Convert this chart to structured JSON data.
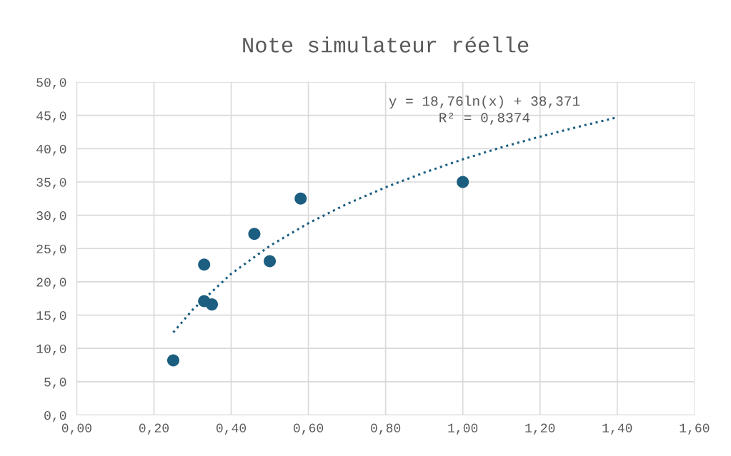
{
  "chart_data": {
    "type": "scatter",
    "title": "Note simulateur réelle",
    "series": [
      {
        "color": "#1b5e80",
        "marker": "circle",
        "x": [
          0.25,
          0.33,
          0.33,
          0.35,
          0.46,
          0.5,
          0.58,
          1.0
        ],
        "values": [
          8.2,
          17.1,
          22.6,
          16.6,
          27.2,
          23.1,
          32.5,
          35.0
        ]
      },
      {
        "type": "line",
        "color": "#1b5e80",
        "line_style": "dotted",
        "marker": "none",
        "x": [
          0.25,
          0.3,
          0.4,
          0.5,
          0.6,
          0.7,
          0.8,
          0.9,
          1.0,
          1.1,
          1.2,
          1.3,
          1.4
        ],
        "values": [
          12.4,
          15.8,
          21.2,
          25.4,
          28.8,
          31.7,
          34.2,
          36.4,
          38.4,
          40.2,
          41.8,
          43.3,
          44.7
        ]
      }
    ],
    "annotations": [
      "y = 18,76ln(x) + 38,371",
      "R² = 0,8374"
    ],
    "xlim": [
      0,
      1.6
    ],
    "ylim": [
      0,
      50
    ],
    "xticks": [
      {
        "value": 0,
        "label": "0,00"
      },
      {
        "value": 0.2,
        "label": "0,20"
      },
      {
        "value": 0.4,
        "label": "0,40"
      },
      {
        "value": 0.6,
        "label": "0,60"
      },
      {
        "value": 0.8,
        "label": "0,80"
      },
      {
        "value": 1.0,
        "label": "1,00"
      },
      {
        "value": 1.2,
        "label": "1,20"
      },
      {
        "value": 1.4,
        "label": "1,40"
      },
      {
        "value": 1.6,
        "label": "1,60"
      }
    ],
    "yticks": [
      {
        "value": 0,
        "label": "0,0"
      },
      {
        "value": 5,
        "label": "5,0"
      },
      {
        "value": 10,
        "label": "10,0"
      },
      {
        "value": 15,
        "label": "15,0"
      },
      {
        "value": 20,
        "label": "20,0"
      },
      {
        "value": 25,
        "label": "25,0"
      },
      {
        "value": 30,
        "label": "30,0"
      },
      {
        "value": 35,
        "label": "35,0"
      },
      {
        "value": 40,
        "label": "40,0"
      },
      {
        "value": 45,
        "label": "45,0"
      },
      {
        "value": 50,
        "label": "50,0"
      }
    ],
    "grid": true
  }
}
